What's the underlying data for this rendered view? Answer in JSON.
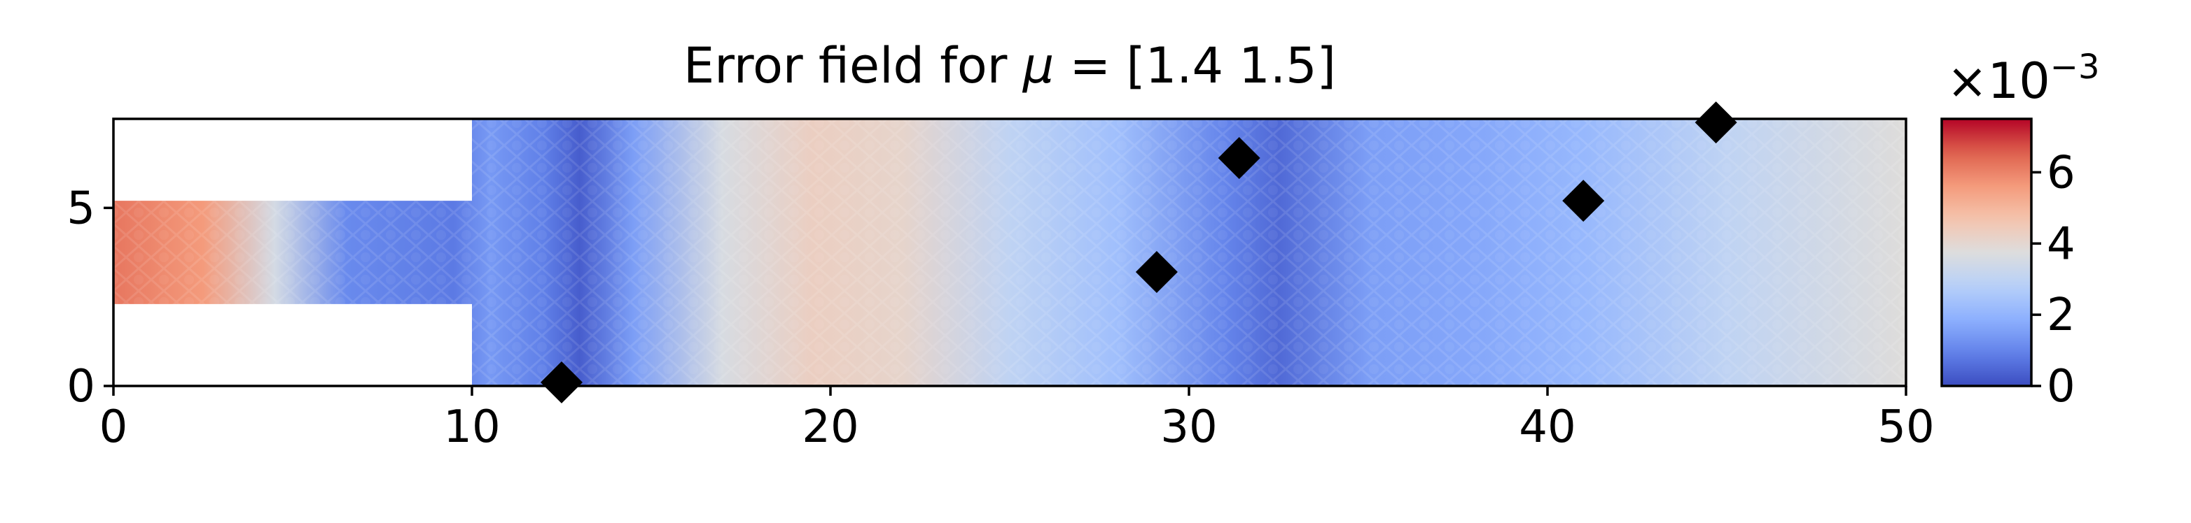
{
  "chart_data": {
    "type": "heatmap",
    "title": {
      "prefix": "Error field for ",
      "symbol": "μ",
      "suffix": " = [1.4 1.5]"
    },
    "xlabel": "",
    "ylabel": "",
    "xlim": [
      0,
      50
    ],
    "ylim": [
      0,
      7.5
    ],
    "x_ticks": [
      0,
      10,
      20,
      30,
      40,
      50
    ],
    "x_tick_labels": [
      "0",
      "10",
      "20",
      "30",
      "40",
      "50"
    ],
    "y_ticks": [
      0,
      5
    ],
    "y_tick_labels": [
      "0",
      "5"
    ],
    "colormap": "coolwarm",
    "colorbar": {
      "range": [
        0,
        7.5
      ],
      "ticks": [
        0,
        2,
        4,
        6
      ],
      "tick_labels": [
        "0",
        "2",
        "4",
        "6"
      ],
      "scale_prefix": "×10",
      "scale_exponent": "−3"
    },
    "domain": {
      "inlet_channel": {
        "x": [
          0,
          10
        ],
        "y": [
          2.3,
          5.2
        ]
      },
      "main_chamber": {
        "x": [
          10,
          50
        ],
        "y": [
          0,
          7.5
        ]
      }
    },
    "error_profile_along_x": [
      {
        "x": 0.0,
        "value": 6.2
      },
      {
        "x": 2.5,
        "value": 5.6
      },
      {
        "x": 4.5,
        "value": 3.5
      },
      {
        "x": 6.5,
        "value": 1.1
      },
      {
        "x": 9.5,
        "value": 0.8
      },
      {
        "x": 10.5,
        "value": 1.4
      },
      {
        "x": 12.0,
        "value": 0.9
      },
      {
        "x": 13.0,
        "value": 0.3
      },
      {
        "x": 14.5,
        "value": 1.5
      },
      {
        "x": 17.0,
        "value": 3.6
      },
      {
        "x": 19.5,
        "value": 4.3
      },
      {
        "x": 22.0,
        "value": 4.1
      },
      {
        "x": 25.0,
        "value": 3.0
      },
      {
        "x": 28.0,
        "value": 2.3
      },
      {
        "x": 31.0,
        "value": 1.0
      },
      {
        "x": 32.5,
        "value": 0.5
      },
      {
        "x": 35.0,
        "value": 1.5
      },
      {
        "x": 38.0,
        "value": 1.7
      },
      {
        "x": 41.0,
        "value": 2.1
      },
      {
        "x": 45.0,
        "value": 3.0
      },
      {
        "x": 50.0,
        "value": 3.8
      }
    ],
    "sensor_points": [
      {
        "x": 12.5,
        "y": 0.1
      },
      {
        "x": 29.1,
        "y": 3.2
      },
      {
        "x": 31.4,
        "y": 6.4
      },
      {
        "x": 41.0,
        "y": 5.2
      },
      {
        "x": 44.7,
        "y": 7.4
      }
    ]
  }
}
